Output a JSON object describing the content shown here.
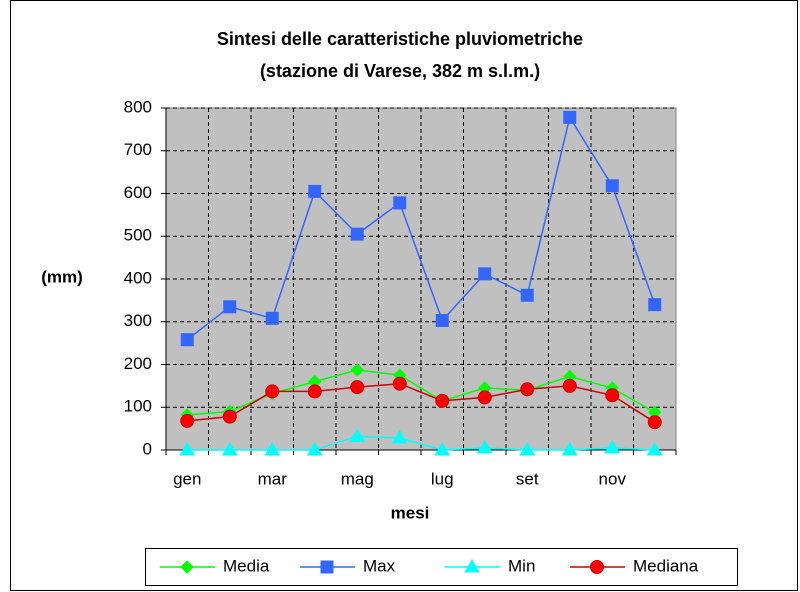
{
  "chart_data": {
    "type": "line",
    "title": [
      "Sintesi delle caratteristiche pluviometriche",
      "(stazione di Varese, 382 m s.l.m.)"
    ],
    "x_label": "mesi",
    "y_label": "(mm)",
    "categories": [
      "gen",
      null,
      "mar",
      null,
      "mag",
      null,
      "lug",
      null,
      "set",
      null,
      "nov",
      null
    ],
    "series": [
      {
        "name": "Media",
        "color": "#00ff00",
        "marker": "diamond",
        "values": [
          82,
          90,
          132,
          160,
          187,
          175,
          115,
          145,
          140,
          172,
          145,
          88
        ]
      },
      {
        "name": "Max",
        "color": "#3366ff",
        "marker": "square",
        "values": [
          258,
          335,
          308,
          605,
          505,
          578,
          303,
          412,
          362,
          778,
          618,
          340
        ]
      },
      {
        "name": "Min",
        "color": "#00ffff",
        "marker": "triangle",
        "values": [
          0,
          0,
          0,
          0,
          32,
          28,
          0,
          5,
          0,
          0,
          5,
          0
        ]
      },
      {
        "name": "Mediana",
        "color": "#ff0000",
        "marker": "circle",
        "values": [
          68,
          78,
          137,
          137,
          147,
          155,
          115,
          123,
          142,
          150,
          128,
          65
        ]
      }
    ],
    "ylim": [
      0,
      800
    ],
    "yticks": [
      0,
      100,
      200,
      300,
      400,
      500,
      600,
      700,
      800
    ],
    "grid": true,
    "legend": "bottom"
  }
}
